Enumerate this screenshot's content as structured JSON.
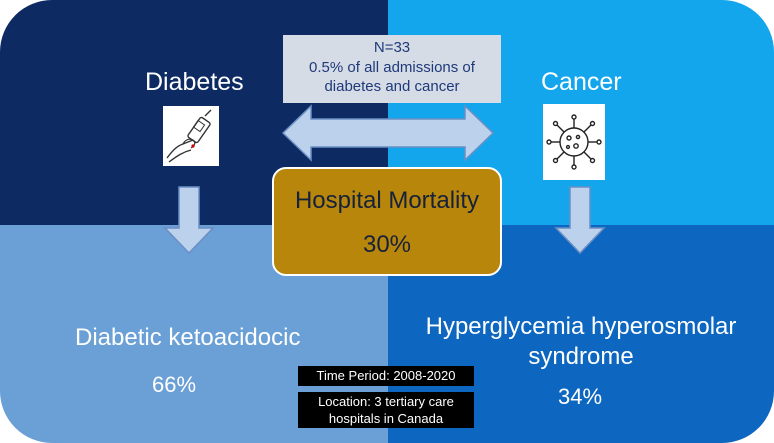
{
  "left": {
    "title": "Diabetes",
    "icon": "glucometer-icon",
    "outcome_label": "Diabetic ketoacidocic",
    "outcome_value": "66%"
  },
  "right": {
    "title": "Cancer",
    "icon": "virus-icon",
    "outcome_label": "Hyperglycemia hyperosmolar syndrome",
    "outcome_value": "34%"
  },
  "stats": {
    "line1": "N=33",
    "line2": "0.5% of all admissions of",
    "line3": "diabetes and cancer"
  },
  "mortality": {
    "title": "Hospital Mortality",
    "value": "30%"
  },
  "study": {
    "period": "Time Period: 2008-2020",
    "location": "Location: 3 tertiary care hospitals in Canada"
  },
  "colors": {
    "top_left": "#0d2a63",
    "top_right": "#14a6ec",
    "bottom_left": "#6aa0d6",
    "bottom_right": "#0d66bf",
    "mortality": "#b8860b",
    "arrow": "#bcd2ec"
  }
}
